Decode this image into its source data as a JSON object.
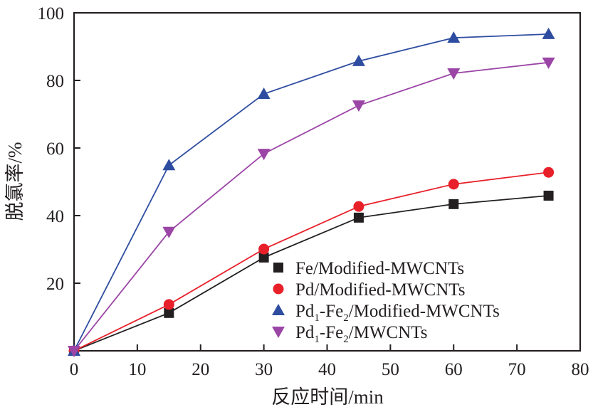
{
  "chart_data": {
    "type": "line",
    "title": "",
    "xlabel": "反应时间/min",
    "ylabel": "脱氯率/%",
    "xlim": [
      0,
      80
    ],
    "ylim": [
      0,
      100
    ],
    "xticks": [
      0,
      10,
      20,
      30,
      40,
      50,
      60,
      70,
      80
    ],
    "yticks": [
      20,
      40,
      60,
      80,
      100
    ],
    "xtick_labels": [
      "0",
      "10",
      "20",
      "30",
      "40",
      "50",
      "60",
      "70",
      "80"
    ],
    "ytick_labels": [
      "20",
      "40",
      "60",
      "80",
      "100"
    ],
    "grid": false,
    "legend_position": "bottom-right",
    "x": [
      0,
      15,
      30,
      45,
      60,
      75
    ],
    "series": [
      {
        "name": "Fe/Modified-MWCNTs",
        "label_main": "Fe/Modified-MWCNTs",
        "marker": "square",
        "color": "#231f20",
        "values": [
          0,
          11.2,
          27.6,
          39.4,
          43.4,
          45.9
        ]
      },
      {
        "name": "Pd/Modified-MWCNTs",
        "label_main": "Pd/Modified-MWCNTs",
        "marker": "circle",
        "color": "#e8202a",
        "values": [
          0,
          13.7,
          30.1,
          42.7,
          49.3,
          52.8
        ]
      },
      {
        "name": "Pd1-Fe2/Modified-MWCNTs",
        "label_parts": [
          "Pd",
          "1",
          "-Fe",
          "2",
          "/Modified-MWCNTs"
        ],
        "marker": "triangle-up",
        "color": "#2e4da0",
        "values": [
          0,
          54.9,
          76.0,
          85.7,
          92.6,
          93.7
        ]
      },
      {
        "name": "Pd1-Fe2/MWCNTs",
        "label_parts": [
          "Pd",
          "1",
          "-Fe",
          "2",
          "/MWCNTs"
        ],
        "marker": "triangle-down",
        "color": "#9b45a6",
        "values": [
          0,
          35.2,
          58.3,
          72.6,
          82.1,
          85.3
        ]
      }
    ]
  }
}
